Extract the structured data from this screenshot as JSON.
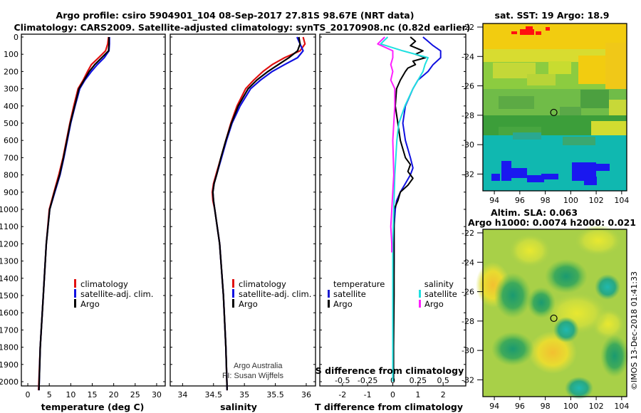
{
  "header": {
    "title_line1": "Argo profile: csiro 5904901_104 08-Sep-2017 27.81S 98.67E (NRT data)",
    "title_line2": "Climatology: CARS2009. Satellite-adjusted climatology: synTS_20170908.nc (0.82d earlier)"
  },
  "colors": {
    "climatology": "#e01010",
    "satellite": "#1010e0",
    "argo": "#000000",
    "t_satellite": "#1a1ad0",
    "t_argo": "#000000",
    "s_satellite": "#20e0e0",
    "s_argo": "#ff20ff"
  },
  "legend": {
    "climatology": "climatology",
    "satellite": "satellite-adj. clim.",
    "argo": "Argo",
    "diff_temperature": "temperature",
    "diff_salinity": "salinity",
    "diff_satellite": "satellite",
    "diff_argo": "Argo"
  },
  "notes": {
    "credit1": "Argo Australia",
    "credit2": "PI: Susan Wijffels",
    "imos": "©IMOS 13-Dec-2018 01:41:33"
  },
  "maps": {
    "sst_title": "sat. SST: 19 Argo: 18.9",
    "sla_title1": "Altim. SLA: 0.063",
    "sla_title2": "Argo h1000: 0.0074 h2000: 0.021",
    "lat_ticks": [
      "-22",
      "-24",
      "-26",
      "-28",
      "-30",
      "-32"
    ],
    "lon_ticks": [
      "94",
      "96",
      "98",
      "100",
      "102",
      "104"
    ],
    "float_lat": -27.81,
    "float_lon": 98.67
  },
  "chart_data": [
    {
      "type": "line",
      "title": "",
      "xlabel": "temperature (deg C)",
      "ylabel": "",
      "xlim": [
        -1.5,
        32
      ],
      "ylim": [
        2050,
        0
      ],
      "xticks": [
        "0",
        "5",
        "10",
        "15",
        "20",
        "25",
        "30"
      ],
      "yticks": [
        "0",
        "100",
        "200",
        "300",
        "400",
        "500",
        "600",
        "700",
        "800",
        "900",
        "1000",
        "1100",
        "1200",
        "1300",
        "1400",
        "1500",
        "1600",
        "1700",
        "1800",
        "1900",
        "2000"
      ],
      "series": [
        {
          "name": "climatology",
          "color": "red",
          "depth": [
            0,
            40,
            80,
            120,
            160,
            200,
            250,
            300,
            400,
            500,
            600,
            700,
            800,
            900,
            1000,
            1200,
            1500,
            1800,
            2050
          ],
          "values": [
            18.8,
            18.6,
            18.1,
            16.5,
            14.8,
            13.9,
            12.9,
            11.7,
            10.7,
            9.8,
            9.0,
            8.2,
            7.2,
            6.1,
            5.0,
            4.3,
            3.6,
            2.9,
            2.5
          ]
        },
        {
          "name": "satellite-adj. clim.",
          "color": "blue",
          "depth": [
            0,
            40,
            80,
            120,
            160,
            200,
            250,
            300,
            400,
            500,
            600,
            700,
            800,
            900,
            1000,
            1200,
            1500,
            1800,
            2050
          ],
          "values": [
            19.0,
            19.0,
            18.9,
            17.8,
            16.2,
            14.8,
            13.3,
            12.1,
            11.0,
            10.0,
            9.2,
            8.4,
            7.5,
            6.3,
            5.1,
            4.3,
            3.6,
            2.9,
            2.6
          ]
        },
        {
          "name": "Argo",
          "color": "black",
          "depth": [
            0,
            40,
            80,
            120,
            160,
            200,
            250,
            300,
            400,
            500,
            600,
            700,
            800,
            900,
            1000,
            1200,
            1500,
            1800,
            2050
          ],
          "values": [
            18.9,
            18.9,
            18.8,
            17.2,
            15.6,
            14.3,
            13.1,
            11.9,
            10.9,
            9.9,
            9.1,
            8.3,
            7.4,
            6.2,
            5.1,
            4.3,
            3.6,
            2.9,
            2.6
          ]
        }
      ]
    },
    {
      "type": "line",
      "title": "",
      "xlabel": "salinity",
      "ylabel": "",
      "xlim": [
        33.8,
        36.15
      ],
      "ylim": [
        2050,
        0
      ],
      "xticks": [
        "34",
        "34.5",
        "35",
        "35.5",
        "36"
      ],
      "series": [
        {
          "name": "climatology",
          "color": "red",
          "depth": [
            0,
            40,
            80,
            120,
            160,
            200,
            250,
            300,
            400,
            500,
            600,
            700,
            800,
            850,
            900,
            950,
            1000,
            1200,
            1500,
            1800,
            2050
          ],
          "values": [
            35.95,
            35.98,
            35.9,
            35.65,
            35.45,
            35.3,
            35.15,
            35.02,
            34.88,
            34.78,
            34.7,
            34.62,
            34.54,
            34.5,
            34.48,
            34.49,
            34.52,
            34.6,
            34.66,
            34.7,
            34.72
          ]
        },
        {
          "name": "satellite-adj. clim.",
          "color": "blue",
          "depth": [
            0,
            40,
            80,
            120,
            160,
            200,
            250,
            300,
            400,
            500,
            600,
            700,
            800,
            850,
            900,
            950,
            1000,
            1200,
            1500,
            1800,
            2050
          ],
          "values": [
            35.85,
            35.9,
            35.95,
            35.86,
            35.65,
            35.45,
            35.26,
            35.1,
            34.93,
            34.8,
            34.71,
            34.63,
            34.55,
            34.51,
            34.49,
            34.5,
            34.52,
            34.6,
            34.66,
            34.7,
            34.72
          ]
        },
        {
          "name": "Argo",
          "color": "black",
          "depth": [
            0,
            40,
            80,
            120,
            160,
            200,
            250,
            300,
            400,
            500,
            600,
            700,
            800,
            850,
            900,
            950,
            1000,
            1200,
            1500,
            1800,
            2050
          ],
          "values": [
            35.88,
            35.9,
            35.86,
            35.72,
            35.55,
            35.38,
            35.2,
            35.06,
            34.9,
            34.79,
            34.7,
            34.62,
            34.55,
            34.51,
            34.49,
            34.5,
            34.52,
            34.6,
            34.66,
            34.7,
            34.72
          ]
        }
      ]
    },
    {
      "type": "line",
      "title": "S difference from climatology",
      "xlabel": "T difference from climatology",
      "ylabel": "",
      "xlim": [
        -2.9,
        2.9
      ],
      "ylim": [
        2050,
        0
      ],
      "xticks": [
        "-2",
        "-1",
        "0",
        "1",
        "2"
      ],
      "s_xticks": [
        "-0.5",
        "-0.25",
        "0",
        "0.25",
        "0.5"
      ],
      "series": [
        {
          "name": "temperature satellite",
          "color": "blue",
          "depth": [
            0,
            25,
            50,
            80,
            120,
            160,
            200,
            250,
            300,
            400,
            500,
            600,
            700,
            760,
            800,
            850,
            900,
            950,
            1000,
            1100,
            1300,
            1500,
            1700,
            2000
          ],
          "values": [
            1.2,
            1.4,
            1.6,
            1.9,
            1.9,
            1.6,
            1.4,
            1.0,
            0.8,
            0.5,
            0.4,
            0.5,
            0.7,
            0.8,
            0.7,
            0.5,
            0.3,
            0.15,
            0.1,
            0.05,
            0.05,
            0.03,
            0.02,
            0.02
          ]
        },
        {
          "name": "temperature Argo",
          "color": "black",
          "depth": [
            0,
            25,
            50,
            80,
            100,
            120,
            140,
            160,
            180,
            200,
            250,
            300,
            400,
            500,
            600,
            700,
            740,
            780,
            820,
            860,
            900,
            950,
            1000,
            1200,
            1500,
            1800,
            2000
          ],
          "values": [
            0.7,
            0.9,
            0.7,
            1.2,
            0.9,
            1.3,
            0.8,
            0.9,
            0.6,
            0.5,
            0.3,
            0.15,
            0.1,
            0.2,
            0.3,
            0.5,
            0.7,
            0.6,
            0.8,
            0.6,
            0.3,
            0.2,
            0.05,
            0.05,
            0.05,
            0.03,
            0.03
          ]
        },
        {
          "name": "salinity satellite",
          "color": "cyan",
          "depth": [
            0,
            40,
            80,
            120,
            160,
            200,
            300,
            400,
            500,
            600,
            800,
            1000,
            1200,
            1500,
            1800,
            2000
          ],
          "values": [
            -0.05,
            -0.12,
            0.1,
            0.35,
            0.32,
            0.3,
            0.2,
            0.12,
            0.06,
            0.04,
            0.02,
            0.01,
            0.0,
            0.0,
            0.0,
            0.0
          ]
        },
        {
          "name": "salinity Argo",
          "color": "magenta",
          "depth": [
            0,
            40,
            80,
            120,
            160,
            200,
            250,
            300,
            400,
            600,
            800,
            1000,
            1100,
            1200,
            1250
          ],
          "values": [
            -0.08,
            -0.15,
            0.0,
            0.0,
            -0.02,
            0.0,
            -0.02,
            0.02,
            0.02,
            0.0,
            0.01,
            -0.01,
            -0.02,
            -0.01,
            -0.01
          ]
        }
      ]
    }
  ]
}
